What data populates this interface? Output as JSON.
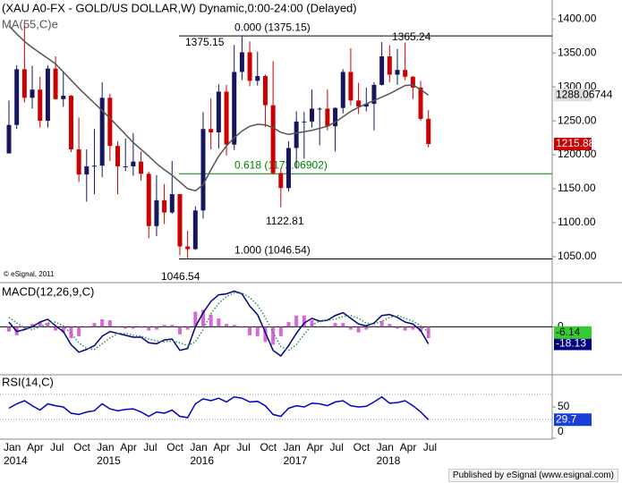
{
  "chart_data": [
    {
      "type": "candlestick",
      "title": "(XAU A0-FX - GOLD/US DOLLAR,W) Dynamic,0:00-24:00 (Delayed)",
      "categories": [
        "Jan 2014",
        null,
        null,
        "Apr",
        null,
        null,
        "Jul",
        null,
        null,
        "Oct",
        null,
        null,
        "Jan 2015",
        null,
        null,
        "Apr",
        null,
        null,
        "Jul",
        null,
        null,
        "Oct",
        null,
        null,
        "Jan 2016",
        null,
        null,
        "Apr",
        null,
        null,
        "Jul",
        null,
        null,
        "Oct",
        null,
        null,
        "Jan 2017",
        null,
        null,
        "Apr",
        null,
        null,
        "Jul",
        null,
        null,
        "Oct",
        null,
        null,
        "Jan 2018",
        null,
        null,
        "Apr",
        null,
        null,
        "Jul"
      ],
      "open": [
        1202,
        1244,
        1326,
        1284,
        1296,
        1250,
        1327,
        1282,
        1287,
        1208,
        1171,
        1183,
        1184,
        1284,
        1213,
        1183,
        1183,
        1190,
        1172,
        1095,
        1133,
        1115,
        1142,
        1065,
        1061,
        1118,
        1238,
        1233,
        1293,
        1215,
        1322,
        1351,
        1309,
        1316,
        1273,
        1173,
        1151,
        1210,
        1249,
        1249,
        1268,
        1268,
        1242,
        1269,
        1322,
        1280,
        1271,
        1275,
        1303,
        1345,
        1318,
        1325,
        1315,
        1299,
        1253
      ],
      "high": [
        1280,
        1332,
        1392,
        1331,
        1315,
        1332,
        1345,
        1323,
        1288,
        1255,
        1208,
        1238,
        1307,
        1290,
        1220,
        1224,
        1232,
        1205,
        1175,
        1170,
        1157,
        1191,
        1142,
        1088,
        1124,
        1263,
        1283,
        1304,
        1303,
        1362,
        1375.15,
        1367,
        1352,
        1318,
        1338,
        1180,
        1220,
        1264,
        1263,
        1296,
        1270,
        1296,
        1270,
        1326,
        1357,
        1306,
        1299,
        1307,
        1366,
        1361,
        1356,
        1365.24,
        1316,
        1309,
        1266
      ],
      "low": [
        1202,
        1238,
        1277,
        1268,
        1240,
        1240,
        1281,
        1271,
        1204,
        1160,
        1131,
        1142,
        1167,
        1191,
        1142,
        1176,
        1169,
        1162,
        1077,
        1080,
        1098,
        1113,
        1052,
        1046.54,
        1060,
        1106,
        1208,
        1209,
        1199,
        1207,
        1310,
        1301,
        1302,
        1241,
        1171,
        1122.81,
        1146,
        1180,
        1194,
        1240,
        1214,
        1236,
        1205,
        1261,
        1273,
        1260,
        1264,
        1236,
        1302,
        1307,
        1303,
        1310,
        1282,
        1250,
        1211
      ],
      "close": [
        1244,
        1326,
        1284,
        1296,
        1250,
        1327,
        1282,
        1287,
        1208,
        1171,
        1183,
        1184,
        1284,
        1213,
        1183,
        1183,
        1190,
        1172,
        1095,
        1133,
        1115,
        1142,
        1065,
        1061,
        1118,
        1238,
        1233,
        1293,
        1215,
        1322,
        1351,
        1309,
        1316,
        1273,
        1173,
        1151,
        1210,
        1249,
        1249,
        1268,
        1268,
        1242,
        1269,
        1322,
        1280,
        1271,
        1275,
        1303,
        1345,
        1318,
        1325,
        1315,
        1299,
        1253,
        1215.88
      ],
      "up_color": "#16165e",
      "down_color": "#cc0000",
      "last_color": "#cc0000",
      "series": [
        {
          "name": "MA(55,C)e",
          "color": "#555555",
          "label_bg": "#dddddd",
          "values": [
            1390,
            1378,
            1367,
            1358,
            1350,
            1342,
            1334,
            1322,
            1310,
            1298,
            1287,
            1276,
            1265,
            1254,
            1242,
            1230,
            1218,
            1208,
            1198,
            1187,
            1178,
            1170,
            1160,
            1150,
            1147,
            1156,
            1178,
            1198,
            1213,
            1225,
            1235,
            1242,
            1245,
            1244,
            1240,
            1233,
            1230,
            1232,
            1234,
            1236,
            1239,
            1242,
            1248,
            1256,
            1264,
            1270,
            1275,
            1280,
            1285,
            1290,
            1296,
            1302,
            1303,
            1296,
            1288.06744
          ]
        }
      ],
      "ylim": [
        1013,
        1428
      ],
      "yticks": [
        {
          "value": 1400,
          "label": "1400.00"
        },
        {
          "value": 1350,
          "label": "1350.00"
        },
        {
          "value": 1300,
          "label": "1300.00"
        },
        {
          "value": 1250,
          "label": "1250.00"
        },
        {
          "value": 1200,
          "label": "1200.00"
        },
        {
          "value": 1150,
          "label": "1150.00"
        },
        {
          "value": 1100,
          "label": "1100.00"
        },
        {
          "value": 1050,
          "label": "1050.00"
        }
      ],
      "fib_levels": [
        {
          "label": "0.000 (1375.15)",
          "value": 1375.15,
          "color": "#000000"
        },
        {
          "label": "0.618 (1172.06902)",
          "value": 1172.06902,
          "color": "#008000"
        },
        {
          "label": "1.000 (1046.54)",
          "value": 1046.54,
          "color": "#000000"
        }
      ],
      "extreme_labels": [
        "1375.15",
        "1365.24",
        "1122.81",
        "1046.54"
      ],
      "copyright": "© eSignal, 2011"
    },
    {
      "type": "macd",
      "title": "MACD(12,26,9,C)",
      "series": [
        {
          "color": "#000080",
          "label_bg": "#000080",
          "label_fg": "#ffffff",
          "style": "solid",
          "values": [
            5,
            -5,
            -3,
            0,
            5,
            8,
            1,
            -5,
            -19,
            -27,
            -24,
            -20,
            -10,
            -5,
            -7,
            -9,
            -11,
            -11,
            -17,
            -18,
            -14,
            -13,
            -25,
            -23,
            0,
            15,
            27,
            34,
            35,
            38,
            35,
            22,
            13,
            -6,
            -25,
            -31,
            -20,
            -7,
            4,
            9,
            6,
            7,
            12,
            15,
            9,
            3,
            1,
            4,
            12,
            13,
            10,
            5,
            3,
            -4,
            -18.13
          ]
        },
        {
          "color": "#2e8b57",
          "label_bg": "#33cc33",
          "label_fg": "#000000",
          "style": "dotted",
          "values": [
            10,
            4,
            -1,
            -3,
            0,
            4,
            5,
            1,
            -7,
            -17,
            -23,
            -24,
            -18,
            -12,
            -7,
            -7,
            -9,
            -10,
            -13,
            -15,
            -16,
            -15,
            -17,
            -20,
            -16,
            -3,
            14,
            25,
            32,
            36,
            36,
            31,
            23,
            10,
            -6,
            -21,
            -25,
            -19,
            -8,
            2,
            6,
            7,
            8,
            11,
            12,
            9,
            4,
            3,
            6,
            10,
            12,
            9,
            6,
            1,
            -6.14
          ]
        }
      ],
      "histogram": {
        "color": "#cc44cc",
        "values": [
          -5,
          -9,
          -2,
          3,
          5,
          4,
          -4,
          -6,
          -12,
          -10,
          -1,
          4,
          8,
          7,
          0,
          -2,
          -2,
          -1,
          -4,
          -3,
          2,
          2,
          -8,
          -3,
          16,
          18,
          13,
          9,
          3,
          2,
          -1,
          -9,
          -10,
          -16,
          -19,
          -10,
          5,
          12,
          12,
          7,
          0,
          0,
          4,
          4,
          -3,
          -6,
          -3,
          1,
          6,
          3,
          -2,
          -4,
          -3,
          -5,
          -12
        ]
      },
      "ylim": [
        -50,
        45
      ],
      "yticks": [
        0
      ]
    },
    {
      "type": "line",
      "title": "RSI(14,C)",
      "series": [
        {
          "color": "#0000cc",
          "label_bg": "#1a3fd6",
          "label_fg": "#ffffff",
          "values": [
            48,
            55,
            60,
            52,
            45,
            55,
            52,
            50,
            40,
            38,
            42,
            44,
            55,
            47,
            44,
            46,
            47,
            42,
            35,
            42,
            40,
            45,
            35,
            33,
            55,
            63,
            60,
            64,
            58,
            66,
            64,
            58,
            59,
            52,
            38,
            35,
            48,
            52,
            50,
            56,
            55,
            52,
            58,
            60,
            52,
            50,
            51,
            58,
            66,
            56,
            57,
            60,
            52,
            42,
            29.7
          ]
        }
      ],
      "ylim": [
        0,
        100
      ],
      "yticks": [
        50,
        0
      ],
      "levels": [
        70,
        30
      ]
    }
  ],
  "footer": "Published by eSignal (www.esignal.com)"
}
